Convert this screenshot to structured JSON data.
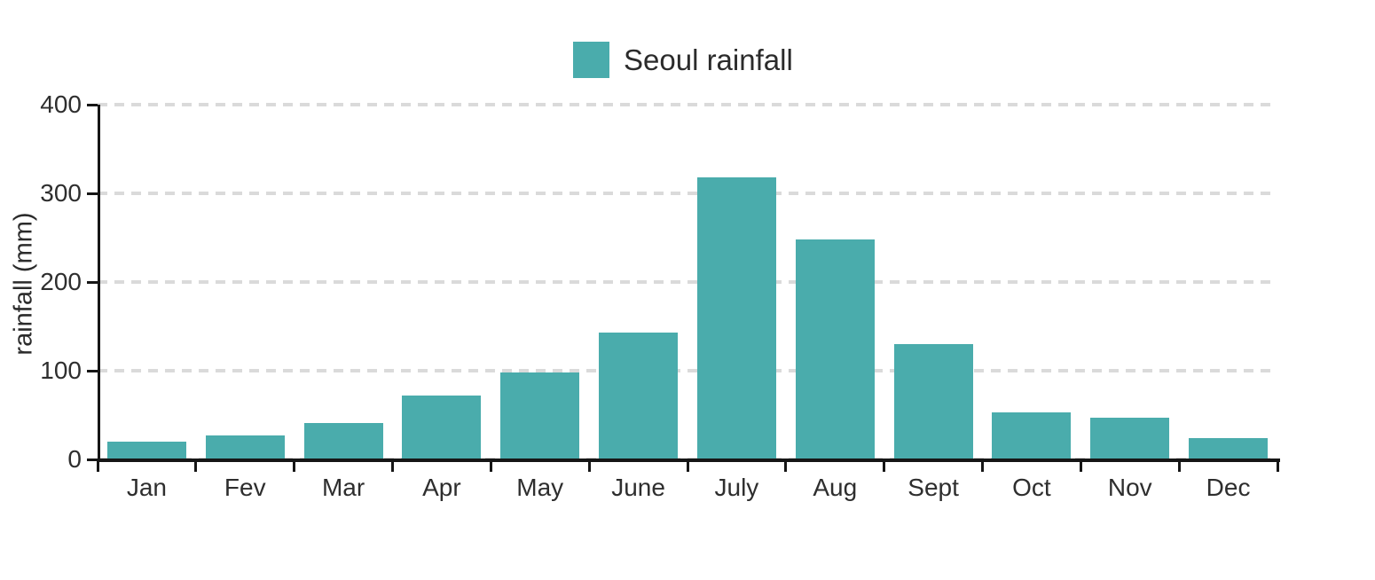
{
  "chart_data": {
    "type": "bar",
    "categories": [
      "Jan",
      "Fev",
      "Mar",
      "Apr",
      "May",
      "June",
      "July",
      "Aug",
      "Sept",
      "Oct",
      "Nov",
      "Dec"
    ],
    "values": [
      20,
      27,
      41,
      72,
      98,
      143,
      318,
      248,
      130,
      53,
      47,
      24
    ],
    "title": "",
    "xlabel": "",
    "ylabel": "rainfall (mm)",
    "ylim": [
      0,
      400
    ],
    "yticks": [
      0,
      100,
      200,
      300,
      400
    ],
    "grid": "horizontal-dashed",
    "legend": {
      "label": "Seoul rainfall",
      "position": "top-center"
    },
    "colors": {
      "bar": "#4AACAC",
      "axis": "#161616",
      "text": "#2e2e2e",
      "gridline": "#dadada",
      "background": "#ffffff"
    }
  }
}
